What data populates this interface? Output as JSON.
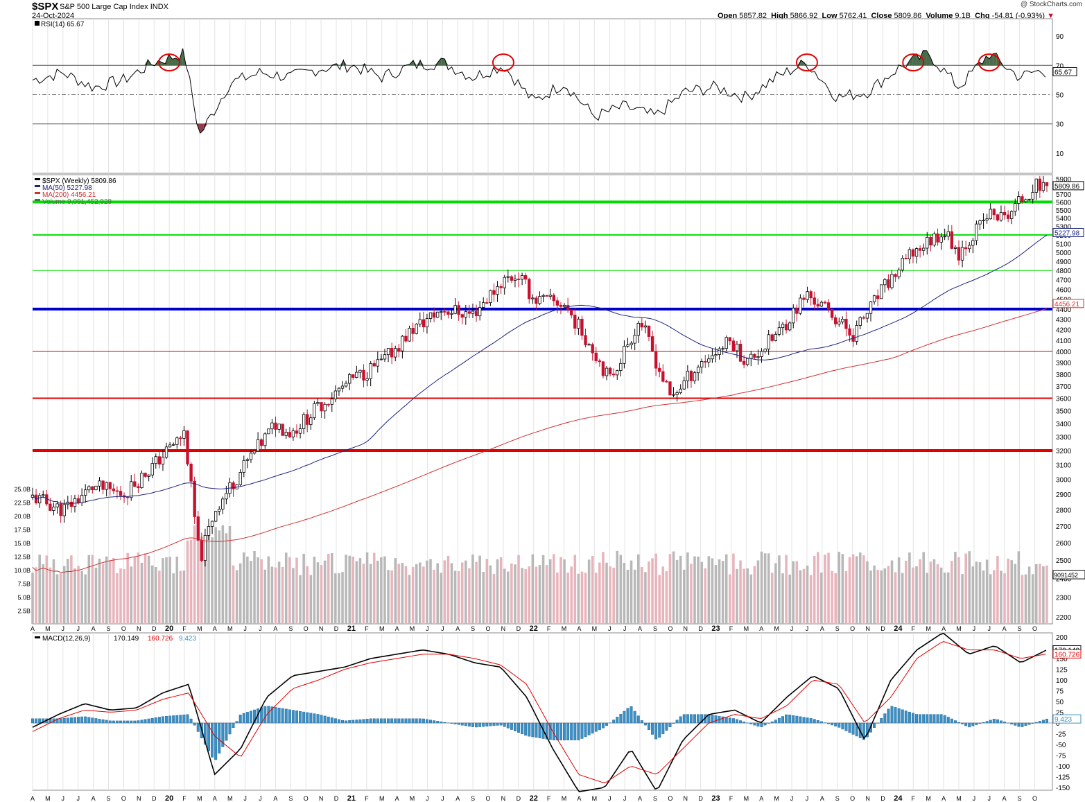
{
  "header": {
    "symbol": "$SPX",
    "name": "S&P 500 Large Cap Index",
    "exchange": "INDX",
    "date": "24-Oct-2024",
    "credit": "@ StockCharts.com",
    "open_label": "Open",
    "open": "5857.82",
    "high_label": "High",
    "high": "5866.92",
    "low_label": "Low",
    "low": "5762.41",
    "close_label": "Close",
    "close": "5809.86",
    "volume_label": "Volume",
    "volume": "9.1B",
    "chg_label": "Chg",
    "chg": "-54.81 (-0.93%)"
  },
  "colors": {
    "up": "#000000",
    "down": "#c8102e",
    "ma50": "#1a237e",
    "ma200": "#d32f2f",
    "green_line": "#00dd00",
    "blue_line": "#0000cc",
    "red_line": "#e00000",
    "macd_hist": "#3a8fc4",
    "rsi_fill": "#4a6b4a",
    "vol_up": "#b8b8b8",
    "vol_down": "#e8b4bc"
  },
  "chart_data": [
    {
      "type": "line",
      "title": "RSI(14) 65.67",
      "legend": [
        "RSI(14) 65.67"
      ],
      "ylim": [
        0,
        100
      ],
      "yticks": [
        10,
        30,
        50,
        70,
        90
      ],
      "reference_lines": [
        30,
        50,
        70
      ],
      "last_value_label": "65.67",
      "circled_peaks_dates": [
        "2020-01",
        "2021-11",
        "2023-07",
        "2024-02",
        "2024-07"
      ],
      "x": [
        "2019-04",
        "2019-06",
        "2019-08",
        "2019-10",
        "2019-12",
        "2020-02",
        "2020-03",
        "2020-05",
        "2020-07",
        "2020-09",
        "2020-11",
        "2021-01",
        "2021-03",
        "2021-05",
        "2021-07",
        "2021-09",
        "2021-11",
        "2022-01",
        "2022-03",
        "2022-05",
        "2022-07",
        "2022-09",
        "2022-11",
        "2023-01",
        "2023-03",
        "2023-05",
        "2023-07",
        "2023-09",
        "2023-11",
        "2024-01",
        "2024-03",
        "2024-05",
        "2024-07",
        "2024-09",
        "2024-10"
      ],
      "values": [
        60,
        65,
        55,
        60,
        72,
        78,
        22,
        58,
        65,
        62,
        68,
        70,
        62,
        70,
        72,
        62,
        70,
        45,
        58,
        35,
        42,
        35,
        52,
        55,
        48,
        62,
        72,
        48,
        52,
        68,
        78,
        55,
        78,
        62,
        65.67
      ]
    },
    {
      "type": "candlestick",
      "title": "$SPX (Weekly) 5809.86",
      "legend": [
        "$SPX (Weekly) 5809.86",
        "MA(50) 5227.98",
        "MA(200) 4456.21",
        "Volume 9,091,452,928"
      ],
      "ylabel": "",
      "ylim": [
        2200,
        5900
      ],
      "yticks": [
        2200,
        2300,
        2400,
        2500,
        2600,
        2700,
        2800,
        2900,
        3000,
        3100,
        3200,
        3300,
        3400,
        3500,
        3600,
        3700,
        3800,
        3900,
        4000,
        4100,
        4200,
        4300,
        4400,
        4500,
        4600,
        4700,
        4800,
        4900,
        5000,
        5100,
        5200,
        5300,
        5400,
        5500,
        5600,
        5700,
        5800,
        5900
      ],
      "log_scale": true,
      "last_close_label": "5809.86",
      "ma50_label": "5227.98",
      "ma200_label": "4456.21",
      "x_ticks": [
        "A",
        "M",
        "J",
        "J",
        "A",
        "S",
        "O",
        "N",
        "D",
        "20",
        "F",
        "M",
        "A",
        "M",
        "J",
        "J",
        "A",
        "S",
        "O",
        "N",
        "D",
        "21",
        "F",
        "M",
        "A",
        "M",
        "J",
        "J",
        "A",
        "S",
        "O",
        "N",
        "D",
        "22",
        "F",
        "M",
        "A",
        "M",
        "J",
        "J",
        "A",
        "S",
        "O",
        "N",
        "D",
        "23",
        "F",
        "M",
        "A",
        "M",
        "J",
        "J",
        "A",
        "S",
        "O",
        "N",
        "D",
        "24",
        "F",
        "M",
        "A",
        "M",
        "J",
        "J",
        "A",
        "S",
        "O"
      ],
      "horizontal_levels": [
        {
          "value": 5600,
          "color": "green",
          "width": "thick"
        },
        {
          "value": 5200,
          "color": "green",
          "width": "medium"
        },
        {
          "value": 4800,
          "color": "green",
          "width": "thin"
        },
        {
          "value": 4400,
          "color": "blue",
          "width": "thick"
        },
        {
          "value": 4000,
          "color": "red",
          "width": "thin"
        },
        {
          "value": 3600,
          "color": "red",
          "width": "medium"
        },
        {
          "value": 3200,
          "color": "red",
          "width": "thick"
        }
      ],
      "key_points": {
        "dates": [
          "2019-04",
          "2019-06",
          "2019-08",
          "2019-10",
          "2019-12",
          "2020-02",
          "2020-03",
          "2020-04",
          "2020-06",
          "2020-08",
          "2020-09",
          "2020-11",
          "2021-01",
          "2021-03",
          "2021-05",
          "2021-07",
          "2021-09",
          "2021-11",
          "2021-12",
          "2022-01",
          "2022-03",
          "2022-05",
          "2022-06",
          "2022-08",
          "2022-10",
          "2022-12",
          "2023-02",
          "2023-03",
          "2023-05",
          "2023-07",
          "2023-09",
          "2023-10",
          "2023-12",
          "2024-02",
          "2024-04",
          "2024-05",
          "2024-07",
          "2024-08",
          "2024-09",
          "2024-10"
        ],
        "close": [
          2880,
          2800,
          2950,
          2900,
          3100,
          3330,
          2500,
          2800,
          3100,
          3400,
          3330,
          3550,
          3750,
          3900,
          4200,
          4400,
          4350,
          4700,
          4750,
          4500,
          4450,
          4000,
          3750,
          4300,
          3600,
          3900,
          4100,
          3900,
          4150,
          4550,
          4300,
          4150,
          4600,
          5000,
          5250,
          5000,
          5450,
          5400,
          5600,
          5809.86
        ]
      },
      "ma50": {
        "start": 2780,
        "end": 5227.98
      },
      "ma200": {
        "start": 2400,
        "end": 4456.21
      },
      "volume_axis": {
        "ylim": [
          0,
          25
        ],
        "unit": "B",
        "yticks": [
          "2.5B",
          "5.0B",
          "7.5B",
          "10.0B",
          "12.5B",
          "15.0B",
          "17.5B",
          "20.0B",
          "22.5B",
          "25.0B"
        ],
        "last_label": "9091452"
      }
    },
    {
      "type": "line",
      "title": "MACD(12,26,9) 170.149, 160.726, 9.423",
      "legend": [
        "MACD(12,26,9)",
        "170.149",
        "160.726",
        "9.423"
      ],
      "ylim": [
        -150,
        200
      ],
      "yticks": [
        200,
        175,
        150,
        125,
        100,
        75,
        50,
        25,
        0,
        -25,
        -50,
        -75,
        -100,
        -125,
        -150
      ],
      "macd_label": "170.149",
      "signal_label": "160.726",
      "hist_label": "9.423",
      "x_ticks": [
        "A",
        "M",
        "J",
        "J",
        "A",
        "S",
        "O",
        "N",
        "D",
        "20",
        "F",
        "M",
        "A",
        "M",
        "J",
        "J",
        "A",
        "S",
        "O",
        "N",
        "D",
        "21",
        "F",
        "M",
        "A",
        "M",
        "J",
        "J",
        "A",
        "S",
        "O",
        "N",
        "D",
        "22",
        "F",
        "M",
        "A",
        "M",
        "J",
        "J",
        "A",
        "S",
        "O",
        "N",
        "D",
        "23",
        "F",
        "M",
        "A",
        "M",
        "J",
        "J",
        "A",
        "S",
        "O",
        "N",
        "D",
        "24",
        "F",
        "M",
        "A",
        "M",
        "J",
        "J",
        "A",
        "S",
        "O"
      ],
      "series": [
        {
          "name": "MACD",
          "values": [
            -10,
            20,
            45,
            30,
            35,
            70,
            90,
            -120,
            -60,
            60,
            110,
            120,
            130,
            150,
            160,
            170,
            160,
            140,
            130,
            60,
            -60,
            -160,
            -150,
            -60,
            -160,
            -40,
            20,
            30,
            0,
            60,
            110,
            80,
            -40,
            100,
            170,
            210,
            160,
            180,
            140,
            170.149
          ]
        },
        {
          "name": "Signal",
          "values": [
            -20,
            10,
            30,
            25,
            30,
            55,
            70,
            -30,
            -80,
            20,
            80,
            100,
            125,
            140,
            150,
            160,
            160,
            150,
            135,
            90,
            -20,
            -120,
            -140,
            -100,
            -120,
            -60,
            0,
            20,
            10,
            40,
            100,
            90,
            0,
            60,
            150,
            190,
            170,
            170,
            150,
            160.726
          ]
        },
        {
          "name": "Histogram",
          "values": [
            10,
            10,
            15,
            5,
            5,
            15,
            20,
            -90,
            20,
            40,
            30,
            20,
            5,
            10,
            10,
            10,
            0,
            -10,
            -5,
            -30,
            -40,
            -40,
            -10,
            40,
            -40,
            20,
            20,
            10,
            -10,
            20,
            10,
            -10,
            -40,
            40,
            20,
            20,
            -10,
            10,
            -10,
            9.423
          ]
        }
      ]
    }
  ]
}
